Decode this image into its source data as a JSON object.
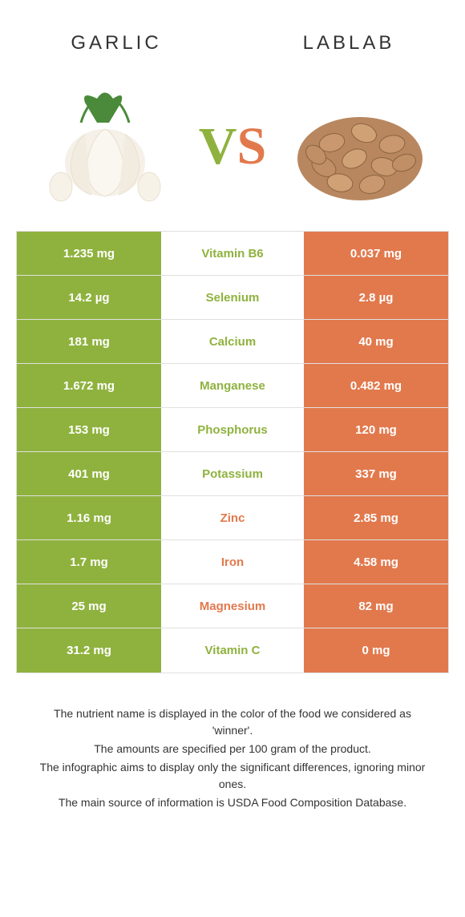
{
  "header": {
    "left": "GARLIC",
    "right": "LABLAB"
  },
  "vs": {
    "v": "V",
    "s": "S"
  },
  "colors": {
    "left": "#8fb23e",
    "right": "#e2794d",
    "vs_v": "#8fb23e",
    "vs_s": "#e2794d",
    "border": "#e0e0e0"
  },
  "rows": [
    {
      "left": "1.235 mg",
      "mid": "Vitamin B6",
      "right": "0.037 mg",
      "winner": "left"
    },
    {
      "left": "14.2 µg",
      "mid": "Selenium",
      "right": "2.8 µg",
      "winner": "left"
    },
    {
      "left": "181 mg",
      "mid": "Calcium",
      "right": "40 mg",
      "winner": "left"
    },
    {
      "left": "1.672 mg",
      "mid": "Manganese",
      "right": "0.482 mg",
      "winner": "left"
    },
    {
      "left": "153 mg",
      "mid": "Phosphorus",
      "right": "120 mg",
      "winner": "left"
    },
    {
      "left": "401 mg",
      "mid": "Potassium",
      "right": "337 mg",
      "winner": "left"
    },
    {
      "left": "1.16 mg",
      "mid": "Zinc",
      "right": "2.85 mg",
      "winner": "right"
    },
    {
      "left": "1.7 mg",
      "mid": "Iron",
      "right": "4.58 mg",
      "winner": "right"
    },
    {
      "left": "25 mg",
      "mid": "Magnesium",
      "right": "82 mg",
      "winner": "right"
    },
    {
      "left": "31.2 mg",
      "mid": "Vitamin C",
      "right": "0 mg",
      "winner": "left"
    }
  ],
  "footnotes": [
    "The nutrient name is displayed in the color of the food we considered as 'winner'.",
    "The amounts are specified per 100 gram of the product.",
    "The infographic aims to display only the significant differences, ignoring minor ones.",
    "The main source of information is USDA Food Composition Database."
  ]
}
